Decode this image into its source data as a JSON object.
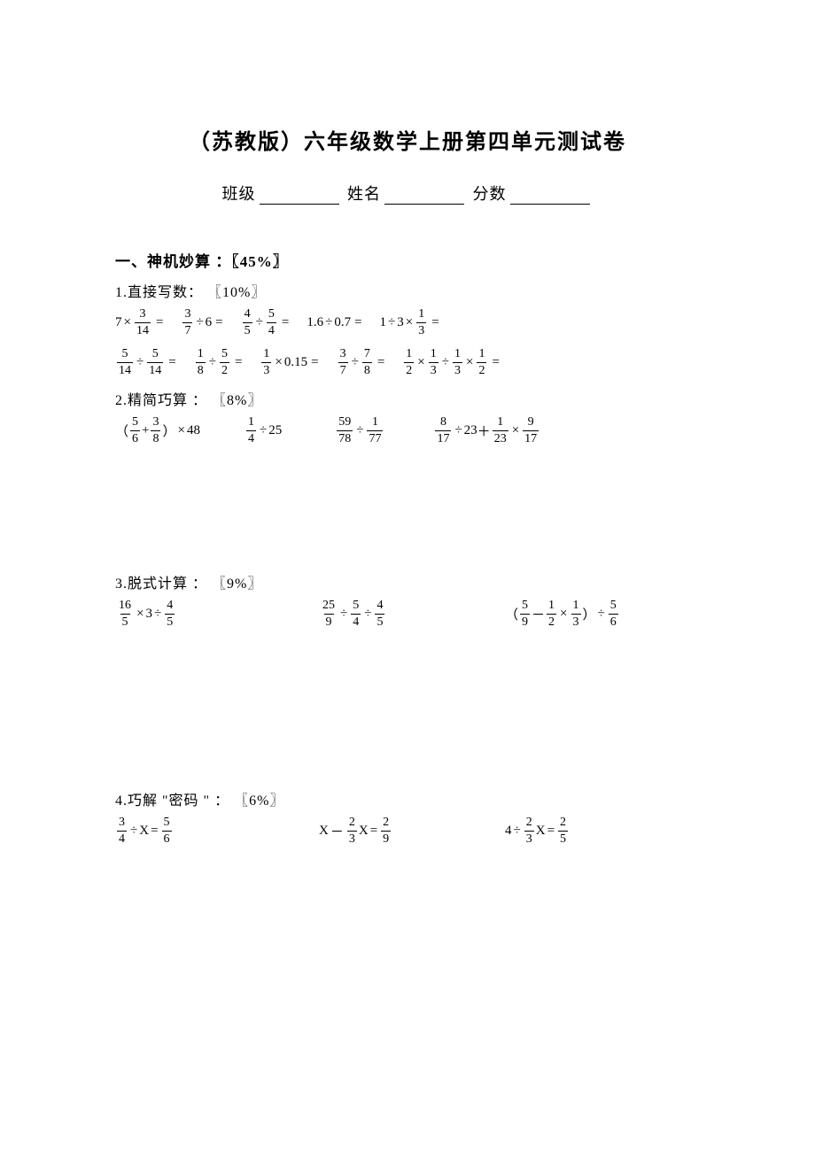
{
  "title": "（苏教版）六年级数学上册第四单元测试卷",
  "info": {
    "class_label": "班级",
    "name_label": "姓名",
    "score_label": "分数"
  },
  "s1": {
    "head": "一、神机妙算 ：〖45%〗",
    "p1": {
      "head": "1.直接写数： 〖10%〗",
      "r1": {
        "e1": {
          "a": "7",
          "fn": "3",
          "fd": "14"
        },
        "e2": {
          "fn": "3",
          "fd": "7",
          "b": "6"
        },
        "e3": {
          "fn1": "4",
          "fd1": "5",
          "fn2": "5",
          "fd2": "4"
        },
        "e4": {
          "a": "1.6",
          "b": "0.7"
        },
        "e5": {
          "a": "1",
          "b": "3",
          "fn": "1",
          "fd": "3"
        }
      },
      "r2": {
        "e1": {
          "fn1": "5",
          "fd1": "14",
          "fn2": "5",
          "fd2": "14"
        },
        "e2": {
          "fn1": "1",
          "fd1": "8",
          "fn2": "5",
          "fd2": "2"
        },
        "e3": {
          "fn": "1",
          "fd": "3",
          "b": "0.15"
        },
        "e4": {
          "fn1": "3",
          "fd1": "7",
          "fn2": "7",
          "fd2": "8"
        },
        "e5": {
          "fn1": "1",
          "fd1": "2",
          "fn2": "1",
          "fd2": "3",
          "fn3": "1",
          "fd3": "3",
          "fn4": "1",
          "fd4": "2"
        }
      }
    },
    "p2": {
      "head": "2.精简巧算 ： 〖8%〗",
      "e1": {
        "fn1": "5",
        "fd1": "6",
        "fn2": "3",
        "fd2": "8",
        "tail": "48"
      },
      "e2": {
        "fn": "1",
        "fd": "4",
        "b": "25"
      },
      "e3": {
        "fn1": "59",
        "fd1": "78",
        "fn2": "1",
        "fd2": "77"
      },
      "e4": {
        "fn1": "8",
        "fd1": "17",
        "b": "23",
        "fn2": "1",
        "fd2": "23",
        "fn3": "9",
        "fd3": "17"
      }
    },
    "p3": {
      "head": "3.脱式计算 ： 〖9%〗",
      "e1": {
        "fn1": "16",
        "fd1": "5",
        "mid": "3",
        "fn2": "4",
        "fd2": "5"
      },
      "e2": {
        "fn1": "25",
        "fd1": "9",
        "fn2": "5",
        "fd2": "4",
        "fn3": "4",
        "fd3": "5"
      },
      "e3": {
        "fn1": "5",
        "fd1": "9",
        "fn2": "1",
        "fd2": "2",
        "fn3": "1",
        "fd3": "3",
        "fn4": "5",
        "fd4": "6"
      }
    },
    "p4": {
      "head": "4.巧解 \"密码 \" ： 〖6%〗",
      "e1": {
        "fn1": "3",
        "fd1": "4",
        "fn2": "5",
        "fd2": "6"
      },
      "e2": {
        "fn1": "2",
        "fd1": "3",
        "fn2": "2",
        "fd2": "9"
      },
      "e3": {
        "a": "4",
        "fn1": "2",
        "fd1": "3",
        "fn2": "2",
        "fd2": "5"
      }
    }
  }
}
